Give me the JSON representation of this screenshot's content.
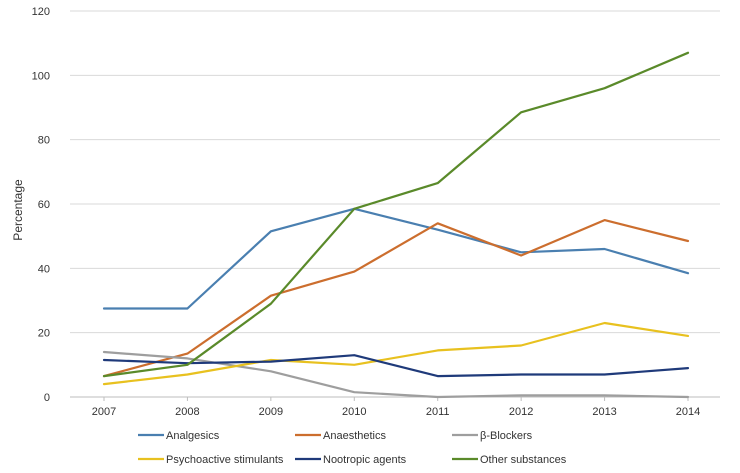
{
  "chart_data": {
    "type": "line",
    "ylabel": "Percentage",
    "xlabel": "",
    "title": "",
    "x": [
      "2007",
      "2008",
      "2009",
      "2010",
      "2011",
      "2012",
      "2013",
      "2014"
    ],
    "ylim": [
      0,
      120
    ],
    "yticks": [
      "0",
      "20",
      "40",
      "60",
      "80",
      "100",
      "120"
    ],
    "grid": "horizontal",
    "legend_position": "bottom",
    "series": [
      {
        "name": "Analgesics",
        "color": "#4a7fb0",
        "values": [
          27.5,
          27.5,
          51.5,
          58.5,
          52,
          45,
          46,
          38.5
        ]
      },
      {
        "name": "Anaesthetics",
        "color": "#cc6e2e",
        "values": [
          6.5,
          13.5,
          31.5,
          39,
          54,
          44,
          55,
          48.5
        ]
      },
      {
        "name": "β-Blockers",
        "color": "#9e9e9e",
        "values": [
          14,
          12,
          8,
          1.5,
          0,
          0.5,
          0.5,
          0
        ]
      },
      {
        "name": "Psychoactive stimulants",
        "color": "#e8c11f",
        "values": [
          4,
          7,
          11.5,
          10,
          14.5,
          16,
          23,
          19
        ]
      },
      {
        "name": "Nootropic agents",
        "color": "#1f3a7a",
        "values": [
          11.5,
          10.5,
          11,
          13,
          6.5,
          7,
          7,
          9
        ]
      },
      {
        "name": "Other substances",
        "color": "#5a8a2a",
        "values": [
          6.5,
          10,
          29,
          58.5,
          66.5,
          88.5,
          96,
          107
        ]
      }
    ]
  }
}
